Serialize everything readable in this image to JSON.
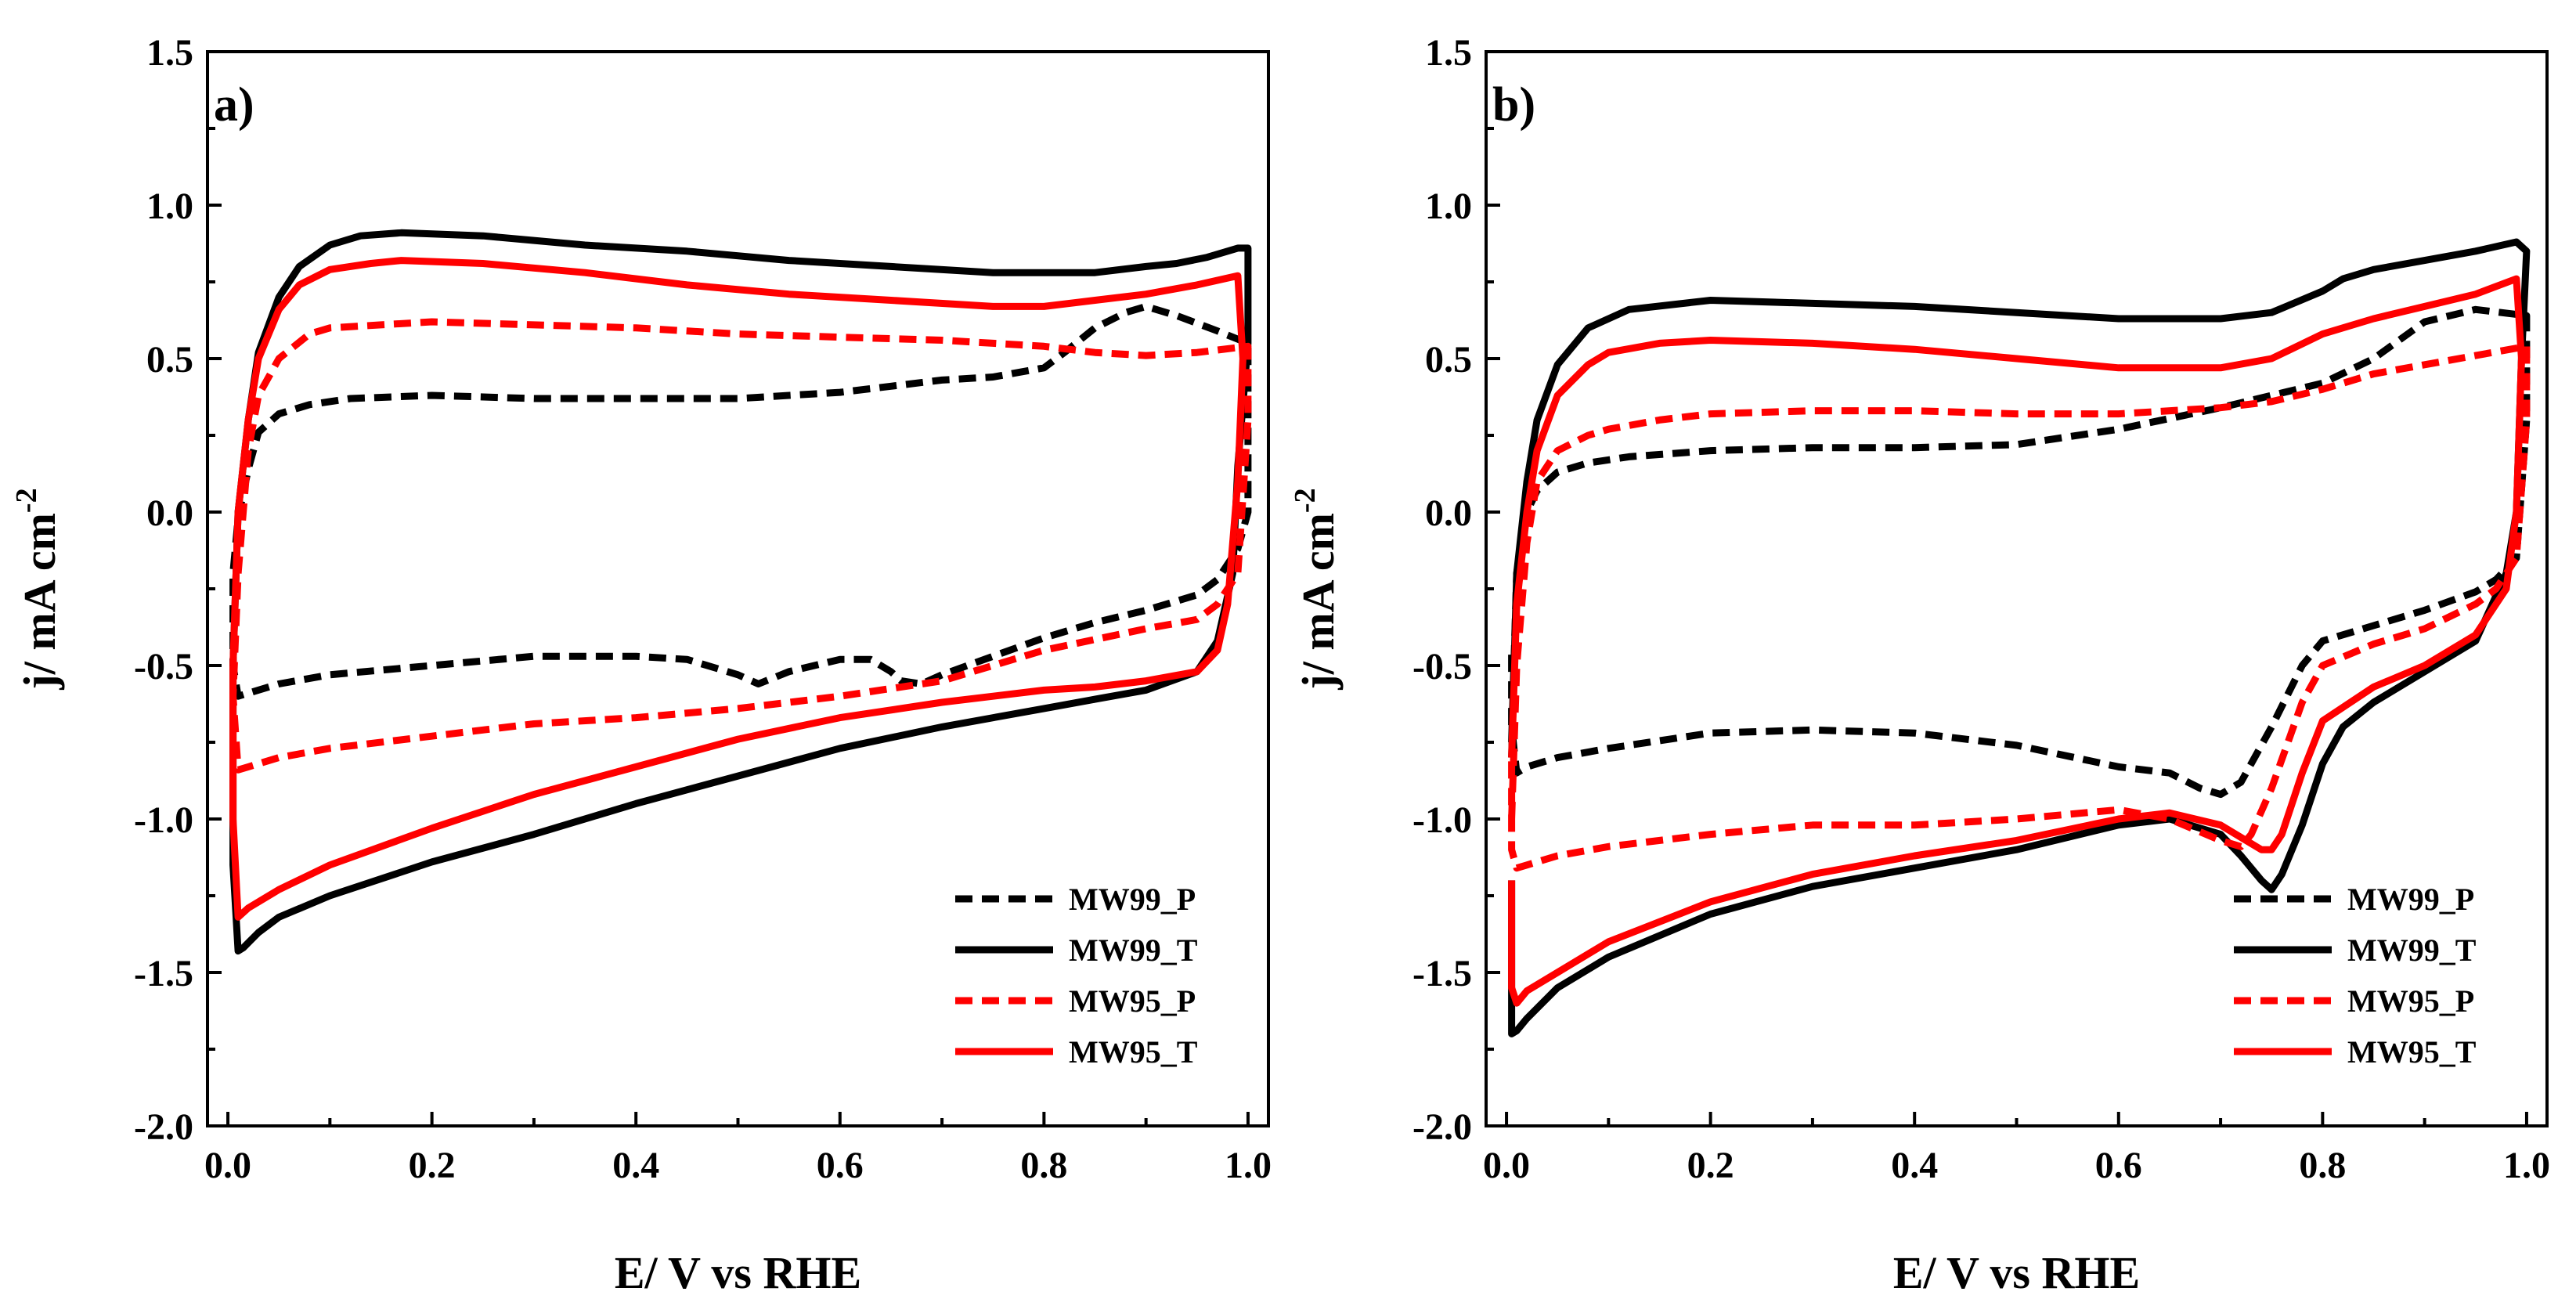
{
  "chart_data": [
    {
      "type": "line",
      "panel_label": "a)",
      "xlabel": "E/ V vs RHE",
      "ylabel_main": "j/ mA cm",
      "ylabel_sup": "-2",
      "xlim": [
        -0.02,
        1.02
      ],
      "ylim": [
        -2.0,
        1.5
      ],
      "xticks": [
        0.0,
        0.2,
        0.4,
        0.6,
        0.8,
        1.0
      ],
      "xtick_labels": [
        "0.0",
        "0.2",
        "0.4",
        "0.6",
        "0.8",
        "1.0"
      ],
      "yticks": [
        -2.0,
        -1.5,
        -1.0,
        -0.5,
        0.0,
        0.5,
        1.0,
        1.5
      ],
      "ytick_labels": [
        "-2.0",
        "-1.5",
        "-1.0",
        "-0.5",
        "0.0",
        "0.5",
        "1.0",
        "1.5"
      ],
      "legend_position": "bottom-right",
      "series": [
        {
          "name": "MW99_P",
          "color": "#000000",
          "dashed": true,
          "x": [
            0.01,
            0.02,
            0.03,
            0.05,
            0.08,
            0.12,
            0.2,
            0.3,
            0.4,
            0.5,
            0.55,
            0.6,
            0.65,
            0.7,
            0.75,
            0.8,
            0.82,
            0.85,
            0.88,
            0.9,
            0.93,
            0.97,
            1.0,
            1.0,
            0.99,
            0.97,
            0.95,
            0.9,
            0.85,
            0.8,
            0.75,
            0.7,
            0.68,
            0.66,
            0.65,
            0.63,
            0.6,
            0.55,
            0.52,
            0.5,
            0.45,
            0.4,
            0.3,
            0.2,
            0.1,
            0.05,
            0.02,
            0.01,
            0.005,
            0.005,
            0.01
          ],
          "y": [
            -0.02,
            0.14,
            0.26,
            0.32,
            0.35,
            0.37,
            0.38,
            0.37,
            0.37,
            0.37,
            0.38,
            0.39,
            0.41,
            0.43,
            0.44,
            0.47,
            0.52,
            0.6,
            0.65,
            0.67,
            0.64,
            0.59,
            0.55,
            0.0,
            -0.12,
            -0.22,
            -0.27,
            -0.32,
            -0.36,
            -0.41,
            -0.47,
            -0.53,
            -0.56,
            -0.55,
            -0.52,
            -0.48,
            -0.48,
            -0.52,
            -0.56,
            -0.53,
            -0.48,
            -0.47,
            -0.47,
            -0.5,
            -0.53,
            -0.56,
            -0.59,
            -0.6,
            -0.5,
            -0.2,
            -0.02
          ]
        },
        {
          "name": "MW99_T",
          "color": "#000000",
          "dashed": false,
          "x": [
            0.005,
            0.01,
            0.02,
            0.03,
            0.05,
            0.07,
            0.1,
            0.13,
            0.17,
            0.25,
            0.35,
            0.45,
            0.55,
            0.65,
            0.75,
            0.8,
            0.85,
            0.9,
            0.93,
            0.96,
            0.99,
            1.0,
            1.0,
            0.99,
            0.985,
            0.97,
            0.95,
            0.9,
            0.85,
            0.8,
            0.7,
            0.6,
            0.5,
            0.4,
            0.3,
            0.2,
            0.1,
            0.05,
            0.03,
            0.015,
            0.01,
            0.005,
            0.005
          ],
          "y": [
            -0.5,
            0.0,
            0.3,
            0.52,
            0.7,
            0.8,
            0.87,
            0.9,
            0.91,
            0.9,
            0.87,
            0.85,
            0.82,
            0.8,
            0.78,
            0.78,
            0.78,
            0.8,
            0.81,
            0.83,
            0.86,
            0.86,
            0.55,
            0.15,
            -0.2,
            -0.42,
            -0.52,
            -0.58,
            -0.61,
            -0.64,
            -0.7,
            -0.77,
            -0.86,
            -0.95,
            -1.05,
            -1.14,
            -1.25,
            -1.32,
            -1.37,
            -1.42,
            -1.43,
            -1.15,
            -0.5
          ]
        },
        {
          "name": "MW95_P",
          "color": "#ff0000",
          "dashed": true,
          "x": [
            0.01,
            0.015,
            0.02,
            0.03,
            0.05,
            0.08,
            0.1,
            0.15,
            0.2,
            0.3,
            0.4,
            0.5,
            0.6,
            0.7,
            0.75,
            0.8,
            0.85,
            0.9,
            0.95,
            1.0,
            1.0,
            0.99,
            0.97,
            0.95,
            0.9,
            0.8,
            0.7,
            0.6,
            0.5,
            0.4,
            0.3,
            0.2,
            0.1,
            0.05,
            0.02,
            0.01,
            0.005,
            0.01
          ],
          "y": [
            -0.2,
            0.0,
            0.2,
            0.38,
            0.5,
            0.58,
            0.6,
            0.61,
            0.62,
            0.61,
            0.6,
            0.58,
            0.57,
            0.56,
            0.55,
            0.54,
            0.52,
            0.51,
            0.52,
            0.54,
            0.3,
            -0.2,
            -0.3,
            -0.35,
            -0.38,
            -0.45,
            -0.55,
            -0.6,
            -0.64,
            -0.67,
            -0.69,
            -0.73,
            -0.77,
            -0.8,
            -0.83,
            -0.84,
            -0.6,
            -0.2
          ]
        },
        {
          "name": "MW95_T",
          "color": "#ff0000",
          "dashed": false,
          "x": [
            0.005,
            0.01,
            0.02,
            0.03,
            0.05,
            0.07,
            0.1,
            0.14,
            0.17,
            0.25,
            0.35,
            0.45,
            0.55,
            0.65,
            0.75,
            0.8,
            0.85,
            0.9,
            0.95,
            0.99,
            0.995,
            0.99,
            0.98,
            0.97,
            0.95,
            0.9,
            0.85,
            0.8,
            0.7,
            0.6,
            0.5,
            0.4,
            0.3,
            0.2,
            0.1,
            0.05,
            0.02,
            0.01,
            0.005,
            0.005
          ],
          "y": [
            -0.5,
            0.0,
            0.3,
            0.5,
            0.66,
            0.74,
            0.79,
            0.81,
            0.82,
            0.81,
            0.78,
            0.74,
            0.71,
            0.69,
            0.67,
            0.67,
            0.69,
            0.71,
            0.74,
            0.77,
            0.5,
            0.1,
            -0.3,
            -0.45,
            -0.52,
            -0.55,
            -0.57,
            -0.58,
            -0.62,
            -0.67,
            -0.74,
            -0.83,
            -0.92,
            -1.03,
            -1.15,
            -1.23,
            -1.29,
            -1.32,
            -1.0,
            -0.5
          ]
        }
      ]
    },
    {
      "type": "line",
      "panel_label": "b)",
      "xlabel": "E/ V vs RHE",
      "ylabel_main": "j/ mA cm",
      "ylabel_sup": "-2",
      "xlim": [
        -0.02,
        1.02
      ],
      "ylim": [
        -2.0,
        1.5
      ],
      "xticks": [
        0.0,
        0.2,
        0.4,
        0.6,
        0.8,
        1.0
      ],
      "xtick_labels": [
        "0.0",
        "0.2",
        "0.4",
        "0.6",
        "0.8",
        "1.0"
      ],
      "yticks": [
        -2.0,
        -1.5,
        -1.0,
        -0.5,
        0.0,
        0.5,
        1.0,
        1.5
      ],
      "ytick_labels": [
        "-2.0",
        "-1.5",
        "-1.0",
        "-0.5",
        "0.0",
        "0.5",
        "1.0",
        "1.5"
      ],
      "legend_position": "bottom-right",
      "series": [
        {
          "name": "MW99_P",
          "color": "#000000",
          "dashed": true,
          "x": [
            0.005,
            0.01,
            0.02,
            0.03,
            0.05,
            0.08,
            0.12,
            0.2,
            0.3,
            0.4,
            0.5,
            0.6,
            0.7,
            0.75,
            0.8,
            0.85,
            0.9,
            0.95,
            1.0,
            1.0,
            0.99,
            0.97,
            0.95,
            0.9,
            0.85,
            0.8,
            0.78,
            0.75,
            0.72,
            0.7,
            0.68,
            0.65,
            0.6,
            0.5,
            0.4,
            0.3,
            0.2,
            0.1,
            0.05,
            0.02,
            0.01,
            0.005,
            0.005
          ],
          "y": [
            -0.75,
            -0.2,
            0.0,
            0.07,
            0.13,
            0.16,
            0.18,
            0.2,
            0.21,
            0.21,
            0.22,
            0.27,
            0.34,
            0.38,
            0.42,
            0.5,
            0.62,
            0.66,
            0.64,
            0.3,
            -0.15,
            -0.22,
            -0.26,
            -0.32,
            -0.37,
            -0.42,
            -0.5,
            -0.7,
            -0.88,
            -0.92,
            -0.9,
            -0.85,
            -0.83,
            -0.76,
            -0.72,
            -0.71,
            -0.72,
            -0.77,
            -0.8,
            -0.83,
            -0.85,
            -0.7,
            -0.45
          ]
        },
        {
          "name": "MW99_T",
          "color": "#000000",
          "dashed": false,
          "x": [
            0.005,
            0.01,
            0.02,
            0.03,
            0.05,
            0.08,
            0.12,
            0.2,
            0.3,
            0.4,
            0.5,
            0.6,
            0.7,
            0.75,
            0.8,
            0.82,
            0.85,
            0.9,
            0.95,
            0.99,
            1.0,
            0.995,
            0.99,
            0.98,
            0.95,
            0.9,
            0.85,
            0.82,
            0.8,
            0.78,
            0.76,
            0.75,
            0.74,
            0.72,
            0.7,
            0.65,
            0.6,
            0.5,
            0.4,
            0.3,
            0.2,
            0.1,
            0.05,
            0.02,
            0.01,
            0.005,
            0.005
          ],
          "y": [
            -0.8,
            -0.2,
            0.1,
            0.3,
            0.48,
            0.6,
            0.66,
            0.69,
            0.68,
            0.67,
            0.65,
            0.63,
            0.63,
            0.65,
            0.72,
            0.76,
            0.79,
            0.82,
            0.85,
            0.88,
            0.85,
            0.5,
            0.0,
            -0.2,
            -0.42,
            -0.52,
            -0.62,
            -0.7,
            -0.82,
            -1.02,
            -1.18,
            -1.23,
            -1.2,
            -1.12,
            -1.05,
            -1.0,
            -1.02,
            -1.1,
            -1.16,
            -1.22,
            -1.31,
            -1.45,
            -1.55,
            -1.65,
            -1.69,
            -1.7,
            -1.2
          ]
        },
        {
          "name": "MW95_P",
          "color": "#ff0000",
          "dashed": true,
          "x": [
            0.005,
            0.01,
            0.02,
            0.03,
            0.05,
            0.08,
            0.1,
            0.15,
            0.2,
            0.3,
            0.4,
            0.5,
            0.6,
            0.7,
            0.75,
            0.8,
            0.85,
            0.9,
            0.95,
            1.0,
            1.0,
            0.99,
            0.97,
            0.95,
            0.9,
            0.85,
            0.8,
            0.78,
            0.75,
            0.73,
            0.72,
            0.7,
            0.65,
            0.6,
            0.5,
            0.4,
            0.3,
            0.2,
            0.1,
            0.05,
            0.02,
            0.01,
            0.005,
            0.005
          ],
          "y": [
            -1.0,
            -0.5,
            -0.1,
            0.1,
            0.2,
            0.25,
            0.27,
            0.3,
            0.32,
            0.33,
            0.33,
            0.32,
            0.32,
            0.34,
            0.36,
            0.4,
            0.45,
            0.48,
            0.51,
            0.54,
            0.3,
            -0.15,
            -0.25,
            -0.3,
            -0.38,
            -0.43,
            -0.5,
            -0.62,
            -0.9,
            -1.05,
            -1.09,
            -1.07,
            -1.0,
            -0.97,
            -1.0,
            -1.02,
            -1.02,
            -1.05,
            -1.09,
            -1.12,
            -1.15,
            -1.16,
            -1.1,
            -0.8
          ]
        },
        {
          "name": "MW95_T",
          "color": "#ff0000",
          "dashed": false,
          "x": [
            0.005,
            0.01,
            0.02,
            0.03,
            0.05,
            0.08,
            0.1,
            0.15,
            0.2,
            0.3,
            0.4,
            0.5,
            0.6,
            0.7,
            0.75,
            0.8,
            0.85,
            0.9,
            0.95,
            0.99,
            0.995,
            0.99,
            0.98,
            0.95,
            0.9,
            0.85,
            0.8,
            0.78,
            0.76,
            0.75,
            0.74,
            0.72,
            0.7,
            0.65,
            0.6,
            0.5,
            0.4,
            0.3,
            0.2,
            0.1,
            0.05,
            0.02,
            0.01,
            0.005,
            0.005
          ],
          "y": [
            -0.8,
            -0.3,
            0.0,
            0.2,
            0.38,
            0.48,
            0.52,
            0.55,
            0.56,
            0.55,
            0.53,
            0.5,
            0.47,
            0.47,
            0.5,
            0.58,
            0.63,
            0.67,
            0.71,
            0.76,
            0.5,
            0.0,
            -0.25,
            -0.4,
            -0.5,
            -0.57,
            -0.68,
            -0.85,
            -1.05,
            -1.1,
            -1.1,
            -1.06,
            -1.02,
            -0.98,
            -1.0,
            -1.07,
            -1.12,
            -1.18,
            -1.27,
            -1.4,
            -1.5,
            -1.56,
            -1.6,
            -1.55,
            -1.2
          ]
        }
      ]
    }
  ]
}
